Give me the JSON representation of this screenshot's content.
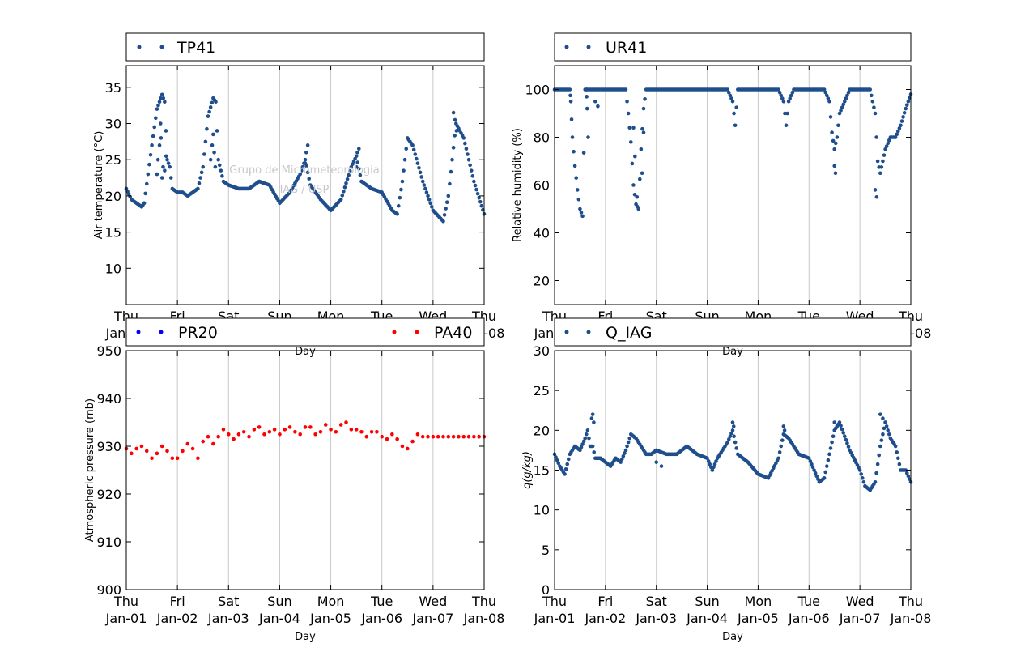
{
  "watermark": {
    "line1": "Grupo de Micrometeorologia",
    "line2": "IAG / USP"
  },
  "x_ticks": {
    "day": [
      "Thu",
      "Fri",
      "Sat",
      "Sun",
      "Mon",
      "Tue",
      "Wed",
      "Thu"
    ],
    "date": [
      "Jan-01",
      "Jan-02",
      "Jan-03",
      "Jan-04",
      "Jan-05",
      "Jan-06",
      "Jan-07",
      "Jan-08"
    ]
  },
  "colors": {
    "navy": "#1f4e8c",
    "blue": "#0000ff",
    "red": "#ff0000",
    "grid": "#c8c8c8"
  },
  "chart_data": [
    {
      "type": "scatter",
      "xlabel": "Day",
      "ylabel": "Air temperature (°C)",
      "xlim": [
        "2015-01-01",
        "2015-01-08"
      ],
      "ylim": [
        5,
        38
      ],
      "yticks": [
        10,
        15,
        20,
        25,
        30,
        35
      ],
      "grid": "vertical",
      "legend": "top",
      "series": [
        {
          "name": "TP41",
          "color": "#1f4e8c",
          "x": [
            0.0,
            0.1,
            0.2,
            0.3,
            0.35,
            0.5,
            0.6,
            0.7,
            0.75,
            0.8,
            0.85,
            0.9,
            1.0,
            1.1,
            1.2,
            1.3,
            1.4,
            1.5,
            1.6,
            1.7,
            1.75,
            1.8,
            1.9,
            2.0,
            2.2,
            2.4,
            2.6,
            2.8,
            3.0,
            3.2,
            3.4,
            3.5,
            3.6,
            3.8,
            4.0,
            4.2,
            4.4,
            4.5,
            4.6,
            4.8,
            5.0,
            5.2,
            5.3,
            5.4,
            5.5,
            5.6,
            5.8,
            6.0,
            6.2,
            6.3,
            6.45,
            6.6,
            6.8,
            7.0
          ],
          "y": [
            21,
            19.5,
            19,
            18.5,
            19,
            27,
            32,
            34,
            33,
            25,
            24,
            21,
            20.5,
            20.5,
            20,
            20.5,
            21,
            24,
            31,
            33.5,
            33,
            25,
            22,
            21.5,
            21,
            21,
            22,
            21.5,
            19,
            20.5,
            23,
            25,
            21.5,
            19.5,
            18,
            19.5,
            24,
            25.5,
            22,
            21,
            20.5,
            18,
            17.5,
            22,
            28,
            27,
            22,
            18,
            16.5,
            20,
            30,
            28,
            22,
            17.5
          ]
        },
        {
          "name": "",
          "color": "#1f4e8c",
          "x": [
            0.6,
            0.62,
            0.65,
            0.67,
            0.68,
            0.7,
            0.72,
            0.75,
            0.78,
            1.65,
            1.68,
            1.7,
            1.72,
            1.74,
            3.5,
            3.52,
            3.55,
            4.5,
            4.52,
            4.55,
            6.4,
            6.43,
            6.46
          ],
          "y": [
            23,
            25,
            27,
            30,
            28,
            22.5,
            24,
            23.5,
            25.5,
            25,
            27,
            28.5,
            26,
            24,
            24.5,
            26,
            27,
            24,
            26,
            26.5,
            31.5,
            30.5,
            29
          ]
        }
      ]
    },
    {
      "type": "scatter",
      "xlabel": "Day",
      "ylabel": "Relative humidity (%)",
      "xlim": [
        "2015-01-01",
        "2015-01-08"
      ],
      "ylim": [
        10,
        110
      ],
      "yticks": [
        20,
        40,
        60,
        80,
        100
      ],
      "grid": "vertical",
      "legend": "top",
      "series": [
        {
          "name": "UR41",
          "color": "#1f4e8c",
          "x": [
            0.0,
            0.3,
            0.32,
            0.35,
            0.4,
            0.45,
            0.5,
            0.55,
            0.6,
            0.62,
            0.65,
            0.7,
            0.75,
            0.8,
            1.4,
            1.45,
            1.5,
            1.55,
            1.6,
            1.65,
            1.7,
            1.75,
            1.8,
            2.0,
            2.5,
            3.0,
            3.4,
            3.5,
            3.55,
            3.6,
            3.7,
            4.0,
            4.3,
            4.4,
            4.5,
            4.55,
            4.6,
            4.7,
            5.0,
            5.3,
            5.4,
            5.45,
            5.5,
            5.55,
            5.6,
            5.7,
            5.8,
            6.0,
            6.2,
            6.3,
            6.35,
            6.4,
            6.5,
            6.6,
            6.7,
            6.8,
            6.9,
            7.0
          ],
          "y": [
            100,
            100,
            95,
            80,
            68,
            58,
            50,
            47,
            100,
            100,
            100,
            100,
            100,
            100,
            100,
            90,
            78,
            60,
            52,
            50,
            75,
            92,
            100,
            100,
            100,
            100,
            100,
            95,
            85,
            100,
            100,
            100,
            100,
            100,
            95,
            85,
            95,
            100,
            100,
            100,
            95,
            82,
            75,
            80,
            90,
            95,
            100,
            100,
            100,
            90,
            70,
            65,
            75,
            80,
            80,
            85,
            92,
            98
          ]
        },
        {
          "name": "",
          "color": "#1f4e8c",
          "x": [
            0.63,
            0.64,
            0.66,
            0.8,
            0.85,
            1.55,
            1.58,
            1.62,
            1.72,
            1.75,
            5.5,
            5.52,
            6.3,
            6.33
          ],
          "y": [
            97,
            92,
            80,
            95,
            93,
            84,
            72,
            55,
            65,
            82,
            68,
            65,
            58,
            55
          ]
        }
      ]
    },
    {
      "type": "scatter",
      "xlabel": "Day",
      "ylabel": "Atmospheric pressure (mb)",
      "xlim": [
        "2015-01-01",
        "2015-01-08"
      ],
      "ylim": [
        900,
        950
      ],
      "yticks": [
        900,
        910,
        920,
        930,
        940,
        950
      ],
      "grid": "vertical",
      "legend": "top",
      "series": [
        {
          "name": "PR20",
          "color": "#0000ff",
          "x": [],
          "y": []
        },
        {
          "name": "PA40",
          "color": "#ff0000",
          "x": [
            0.0,
            0.1,
            0.2,
            0.3,
            0.4,
            0.5,
            0.6,
            0.7,
            0.8,
            0.9,
            1.0,
            1.1,
            1.2,
            1.3,
            1.4,
            1.5,
            1.6,
            1.7,
            1.8,
            1.9,
            2.0,
            2.1,
            2.2,
            2.3,
            2.4,
            2.5,
            2.6,
            2.7,
            2.8,
            2.9,
            3.0,
            3.1,
            3.2,
            3.3,
            3.4,
            3.5,
            3.6,
            3.7,
            3.8,
            3.9,
            4.0,
            4.1,
            4.2,
            4.3,
            4.4,
            4.5,
            4.6,
            4.7,
            4.8,
            4.9,
            5.0,
            5.1,
            5.2,
            5.3,
            5.4,
            5.5,
            5.6,
            5.7,
            5.8,
            5.9,
            6.0,
            6.1,
            6.2,
            6.3,
            6.4,
            6.5,
            6.6,
            6.7,
            6.8,
            6.9,
            7.0
          ],
          "y": [
            929.5,
            928.5,
            929.5,
            930,
            929,
            927.5,
            928.5,
            930,
            929,
            927.5,
            927.5,
            929,
            930.5,
            929.5,
            927.5,
            931,
            932,
            930.5,
            932,
            933.5,
            932.5,
            931.5,
            932.5,
            933,
            932,
            933.5,
            934,
            932.5,
            933,
            933.5,
            932.5,
            933.5,
            934,
            933,
            932.5,
            934,
            934,
            932.5,
            933,
            934.5,
            933.5,
            933,
            934.5,
            935,
            933.5,
            933.5,
            933,
            932,
            933,
            933,
            932,
            931.5,
            932.5,
            931.5,
            930,
            929.5,
            931,
            932.5,
            932,
            932,
            932,
            932,
            932,
            932,
            932,
            932,
            932,
            932,
            932,
            932,
            932
          ]
        }
      ]
    },
    {
      "type": "scatter",
      "xlabel": "Day",
      "ylabel": "q(g/kg)",
      "xlim": [
        "2015-01-01",
        "2015-01-08"
      ],
      "ylim": [
        0,
        30
      ],
      "yticks": [
        0,
        5,
        10,
        15,
        20,
        25,
        30
      ],
      "grid": "vertical",
      "legend": "top",
      "series": [
        {
          "name": "Q_IAG",
          "color": "#1f4e8c",
          "x": [
            0.0,
            0.1,
            0.2,
            0.3,
            0.4,
            0.5,
            0.6,
            0.65,
            0.7,
            0.75,
            0.8,
            0.9,
            1.0,
            1.1,
            1.2,
            1.3,
            1.4,
            1.5,
            1.6,
            1.7,
            1.8,
            1.9,
            2.0,
            2.2,
            2.4,
            2.6,
            2.8,
            3.0,
            3.1,
            3.2,
            3.4,
            3.5,
            3.6,
            3.8,
            4.0,
            4.2,
            4.4,
            4.5,
            4.6,
            4.8,
            5.0,
            5.2,
            5.3,
            5.4,
            5.5,
            5.6,
            5.8,
            6.0,
            6.1,
            6.2,
            6.3,
            6.4,
            6.5,
            6.6,
            6.7,
            6.8,
            6.9,
            7.0
          ],
          "y": [
            17,
            15.5,
            14.5,
            17,
            18,
            17.5,
            19,
            20,
            18,
            18,
            16.5,
            16.5,
            16,
            15.5,
            16.5,
            16,
            17.5,
            19.5,
            19,
            18,
            17,
            17,
            17.5,
            17,
            17,
            18,
            17,
            16.5,
            15,
            16.5,
            18.5,
            20,
            17,
            16,
            14.5,
            14,
            16.5,
            19.5,
            19,
            17,
            16.5,
            13.5,
            14,
            17,
            20,
            21,
            17.5,
            15,
            13,
            12.5,
            13.5,
            18,
            21,
            19,
            18,
            15,
            15,
            13.5
          ]
        },
        {
          "name": "",
          "color": "#1f4e8c",
          "x": [
            0.73,
            0.75,
            0.77,
            2.0,
            2.1,
            3.5,
            3.52,
            4.5,
            4.52,
            5.5,
            5.55,
            6.4,
            6.45,
            6.5
          ],
          "y": [
            21.5,
            22,
            21,
            16,
            15.5,
            21,
            20.5,
            20.5,
            20,
            21,
            20.5,
            22,
            21.5,
            21
          ]
        }
      ]
    }
  ]
}
